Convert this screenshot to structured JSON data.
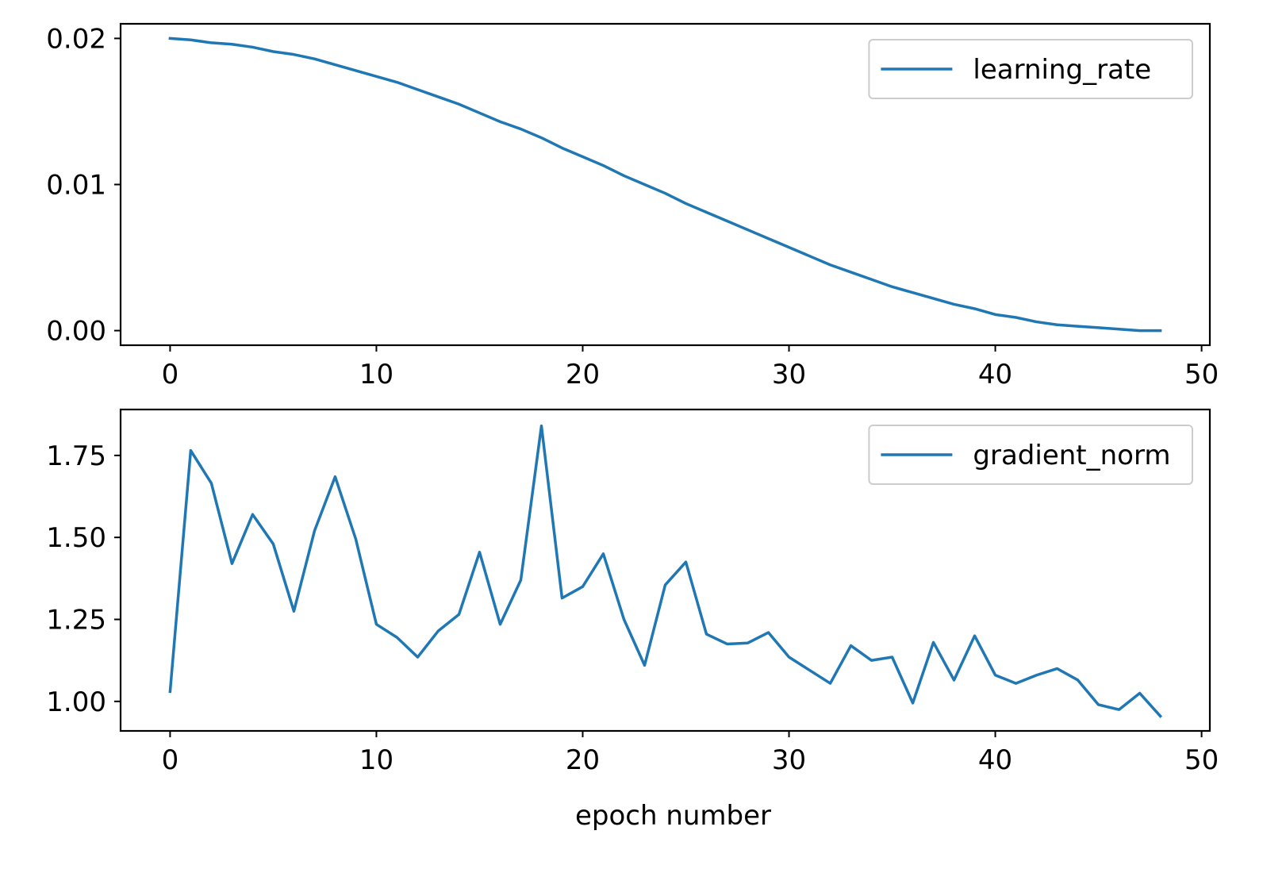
{
  "chart_data": [
    {
      "type": "line",
      "title": "",
      "xlabel": "",
      "ylabel": "",
      "xlim": [
        -2.4,
        50.4
      ],
      "ylim": [
        -0.001,
        0.021
      ],
      "xticks": [
        0,
        10,
        20,
        30,
        40,
        50
      ],
      "xtick_labels": [
        "0",
        "10",
        "20",
        "30",
        "40",
        "50"
      ],
      "yticks": [
        0.0,
        0.01,
        0.02
      ],
      "ytick_labels": [
        "0.00",
        "0.01",
        "0.02"
      ],
      "grid": false,
      "legend_position": "top-right",
      "series": [
        {
          "name": "learning_rate",
          "color": "#1f77b4",
          "x": [
            0,
            1,
            2,
            3,
            4,
            5,
            6,
            7,
            8,
            9,
            10,
            11,
            12,
            13,
            14,
            15,
            16,
            17,
            18,
            19,
            20,
            21,
            22,
            23,
            24,
            25,
            26,
            27,
            28,
            29,
            30,
            31,
            32,
            33,
            34,
            35,
            36,
            37,
            38,
            39,
            40,
            41,
            42,
            43,
            44,
            45,
            46,
            47,
            48
          ],
          "values": [
            0.02,
            0.0199,
            0.0197,
            0.0196,
            0.0194,
            0.0191,
            0.0189,
            0.0186,
            0.0182,
            0.0178,
            0.0174,
            0.017,
            0.0165,
            0.016,
            0.0155,
            0.0149,
            0.0143,
            0.0138,
            0.0132,
            0.0125,
            0.0119,
            0.0113,
            0.0106,
            0.01,
            0.0094,
            0.0087,
            0.0081,
            0.0075,
            0.0069,
            0.0063,
            0.0057,
            0.0051,
            0.0045,
            0.004,
            0.0035,
            0.003,
            0.0026,
            0.0022,
            0.0018,
            0.0015,
            0.0011,
            0.0009,
            0.0006,
            0.0004,
            0.0003,
            0.0002,
            0.0001,
            0.0,
            0.0
          ]
        }
      ]
    },
    {
      "type": "line",
      "title": "",
      "xlabel": "epoch number",
      "ylabel": "",
      "xlim": [
        -2.4,
        50.4
      ],
      "ylim": [
        0.91,
        1.89
      ],
      "xticks": [
        0,
        10,
        20,
        30,
        40,
        50
      ],
      "xtick_labels": [
        "0",
        "10",
        "20",
        "30",
        "40",
        "50"
      ],
      "yticks": [
        1.0,
        1.25,
        1.5,
        1.75
      ],
      "ytick_labels": [
        "1.00",
        "1.25",
        "1.50",
        "1.75"
      ],
      "grid": false,
      "legend_position": "top-right",
      "series": [
        {
          "name": "gradient_norm",
          "color": "#1f77b4",
          "x": [
            0,
            1,
            2,
            3,
            4,
            5,
            6,
            7,
            8,
            9,
            10,
            11,
            12,
            13,
            14,
            15,
            16,
            17,
            18,
            19,
            20,
            21,
            22,
            23,
            24,
            25,
            26,
            27,
            28,
            29,
            30,
            31,
            32,
            33,
            34,
            35,
            36,
            37,
            38,
            39,
            40,
            41,
            42,
            43,
            44,
            45,
            46,
            47,
            48
          ],
          "values": [
            1.03,
            1.765,
            1.665,
            1.42,
            1.57,
            1.48,
            1.275,
            1.52,
            1.685,
            1.495,
            1.235,
            1.195,
            1.135,
            1.215,
            1.265,
            1.455,
            1.235,
            1.37,
            1.84,
            1.315,
            1.35,
            1.45,
            1.25,
            1.11,
            1.355,
            1.425,
            1.205,
            1.175,
            1.178,
            1.21,
            1.135,
            1.095,
            1.055,
            1.17,
            1.125,
            1.135,
            0.995,
            1.18,
            1.065,
            1.2,
            1.08,
            1.055,
            1.08,
            1.1,
            1.065,
            0.99,
            0.975,
            1.025,
            0.955
          ]
        }
      ]
    }
  ]
}
